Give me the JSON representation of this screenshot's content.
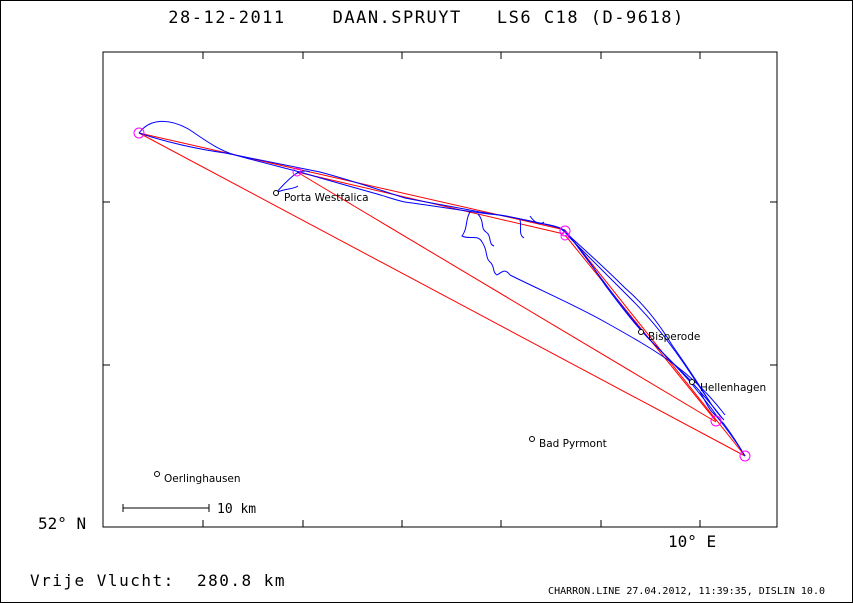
{
  "header": {
    "date": "28-12-2011",
    "pilot": "DAAN.SPRUYT",
    "glider": "LS6 C18 (D-9618)"
  },
  "axes": {
    "lat_label": "52° N",
    "lon_label": "10° E"
  },
  "scale_bar": {
    "label": "10 km"
  },
  "flight": {
    "distance_label": "Vrije Vlucht:",
    "distance_value": "280.8 km"
  },
  "places": [
    {
      "name": "Porta Westfalica"
    },
    {
      "name": "Bisperode"
    },
    {
      "name": "Hellenhagen"
    },
    {
      "name": "Bad Pyrmont"
    },
    {
      "name": "Oerlinghausen"
    }
  ],
  "footer": {
    "text": "CHARRON.LINE 27.04.2012, 11:39:35, DISLIN 10.0"
  },
  "colors": {
    "track": "#0000ff",
    "task": "#ff0000",
    "turnpoint": "#ff00ff",
    "axis": "#000000"
  }
}
